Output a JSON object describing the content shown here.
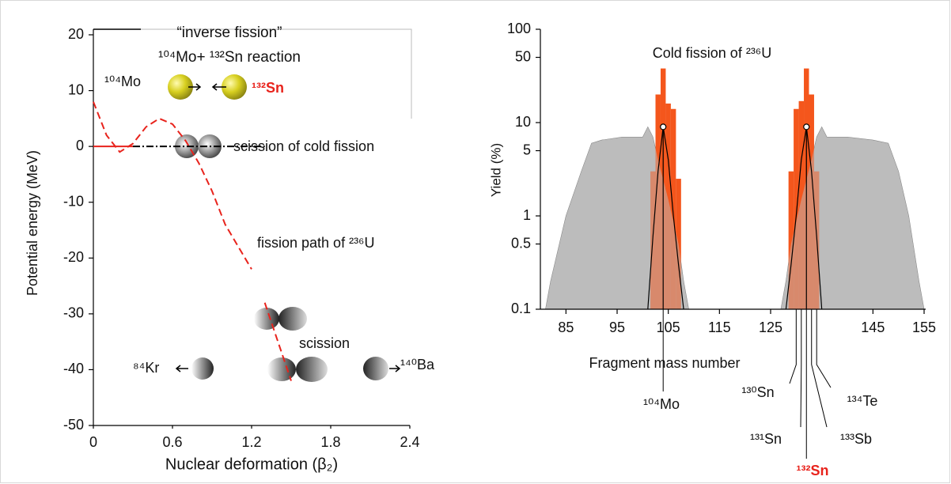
{
  "chart_data": [
    {
      "type": "line",
      "xlabel": "Nuclear deformation (β₂)",
      "ylabel": "Potential energy (MeV)",
      "xlim": [
        0,
        2.4
      ],
      "xticks": [
        0,
        0.6,
        1.2,
        1.8,
        2.4
      ],
      "ylim": [
        -50,
        20
      ],
      "yticks": [
        -50,
        -40,
        -30,
        -20,
        -10,
        0,
        10,
        20
      ],
      "series": [
        {
          "color": "#e8231c",
          "dash": "dashed",
          "x": [
            0,
            0.1,
            0.2,
            0.3,
            0.4,
            0.5,
            0.6,
            0.7,
            0.8,
            0.9,
            1.0,
            1.1,
            1.2,
            null,
            1.3,
            1.4,
            1.5
          ],
          "values": [
            8,
            2,
            -1,
            0.5,
            3.5,
            5,
            4,
            1,
            -3,
            -8,
            -14,
            -18,
            -22,
            null,
            -28,
            -35,
            -42
          ]
        },
        {
          "color": "#e8231c",
          "dash": "solid",
          "x": [
            0,
            0.3
          ],
          "values": [
            0,
            0
          ]
        },
        {
          "color": "#000000",
          "dash": "dashdot",
          "x": [
            0.3,
            1.3
          ],
          "values": [
            0,
            0
          ]
        }
      ],
      "annotations": [
        "“inverse fission”",
        "¹⁰⁴Mo+ ¹³²Sn reaction",
        "¹⁰⁴Mo",
        "¹³²Sn",
        "scission of cold fission",
        "fission path of ²³⁶U",
        "scission",
        "⁸⁴Kr",
        "¹⁴⁰Ba"
      ]
    },
    {
      "type": "mixed",
      "title": "Cold fission of ²³⁶U",
      "xlabel": "Fragment mass number",
      "ylabel": "Yield  (%)",
      "log_y": true,
      "xlim": [
        80,
        155
      ],
      "xticks": [
        85,
        95,
        105,
        115,
        125,
        145,
        155
      ],
      "ylim": [
        0.1,
        100
      ],
      "yticks": [
        0.1,
        0.5,
        1,
        5,
        10,
        50,
        100
      ],
      "series": [
        {
          "kind": "area",
          "color": "#bcbcbc",
          "x": [
            81,
            82,
            85,
            88,
            90,
            92,
            96,
            100,
            101,
            102,
            103,
            105,
            107,
            108,
            109,
            null,
            127,
            128,
            129,
            131,
            133,
            134,
            135,
            136,
            140,
            145,
            148,
            150,
            152,
            154,
            155
          ],
          "values": [
            0.1,
            0.2,
            1,
            3,
            6,
            6.5,
            7,
            7,
            9,
            7,
            4,
            1.5,
            0.5,
            0.2,
            0.1,
            null,
            0.1,
            0.2,
            0.5,
            1.5,
            4,
            7,
            9,
            7,
            7,
            6.5,
            6,
            3,
            1,
            0.2,
            0.1
          ]
        },
        {
          "kind": "bar",
          "color": "#f4561c",
          "x": [
            102,
            103,
            104,
            105,
            106,
            107,
            129,
            130,
            131,
            132,
            133,
            134
          ],
          "values": [
            3,
            20,
            38,
            16,
            14,
            2.5,
            3,
            14,
            17,
            38,
            20,
            3
          ]
        },
        {
          "kind": "line",
          "color": "#000000",
          "x": [
            101,
            102,
            103,
            104,
            105,
            106,
            107,
            108,
            null,
            128,
            129,
            130,
            131,
            132,
            133,
            134,
            135
          ],
          "values": [
            0.1,
            0.6,
            3,
            9,
            4,
            1,
            0.3,
            0.1,
            null,
            0.1,
            0.3,
            1,
            4,
            9,
            3,
            0.6,
            0.1
          ]
        },
        {
          "kind": "point",
          "color": "#000000",
          "x": [
            104,
            132
          ],
          "values": [
            9,
            9
          ]
        }
      ],
      "isotopes": [
        {
          "label": "¹⁰⁴Mo",
          "mass": 104
        },
        {
          "label": "¹³⁰Sn",
          "mass": 130
        },
        {
          "label": "¹³¹Sn",
          "mass": 131
        },
        {
          "label": "¹³²Sn",
          "mass": 132,
          "color": "#e8231c",
          "bold": true
        },
        {
          "label": "¹³³Sb",
          "mass": 133
        },
        {
          "label": "¹³⁴Te",
          "mass": 134
        }
      ]
    }
  ]
}
